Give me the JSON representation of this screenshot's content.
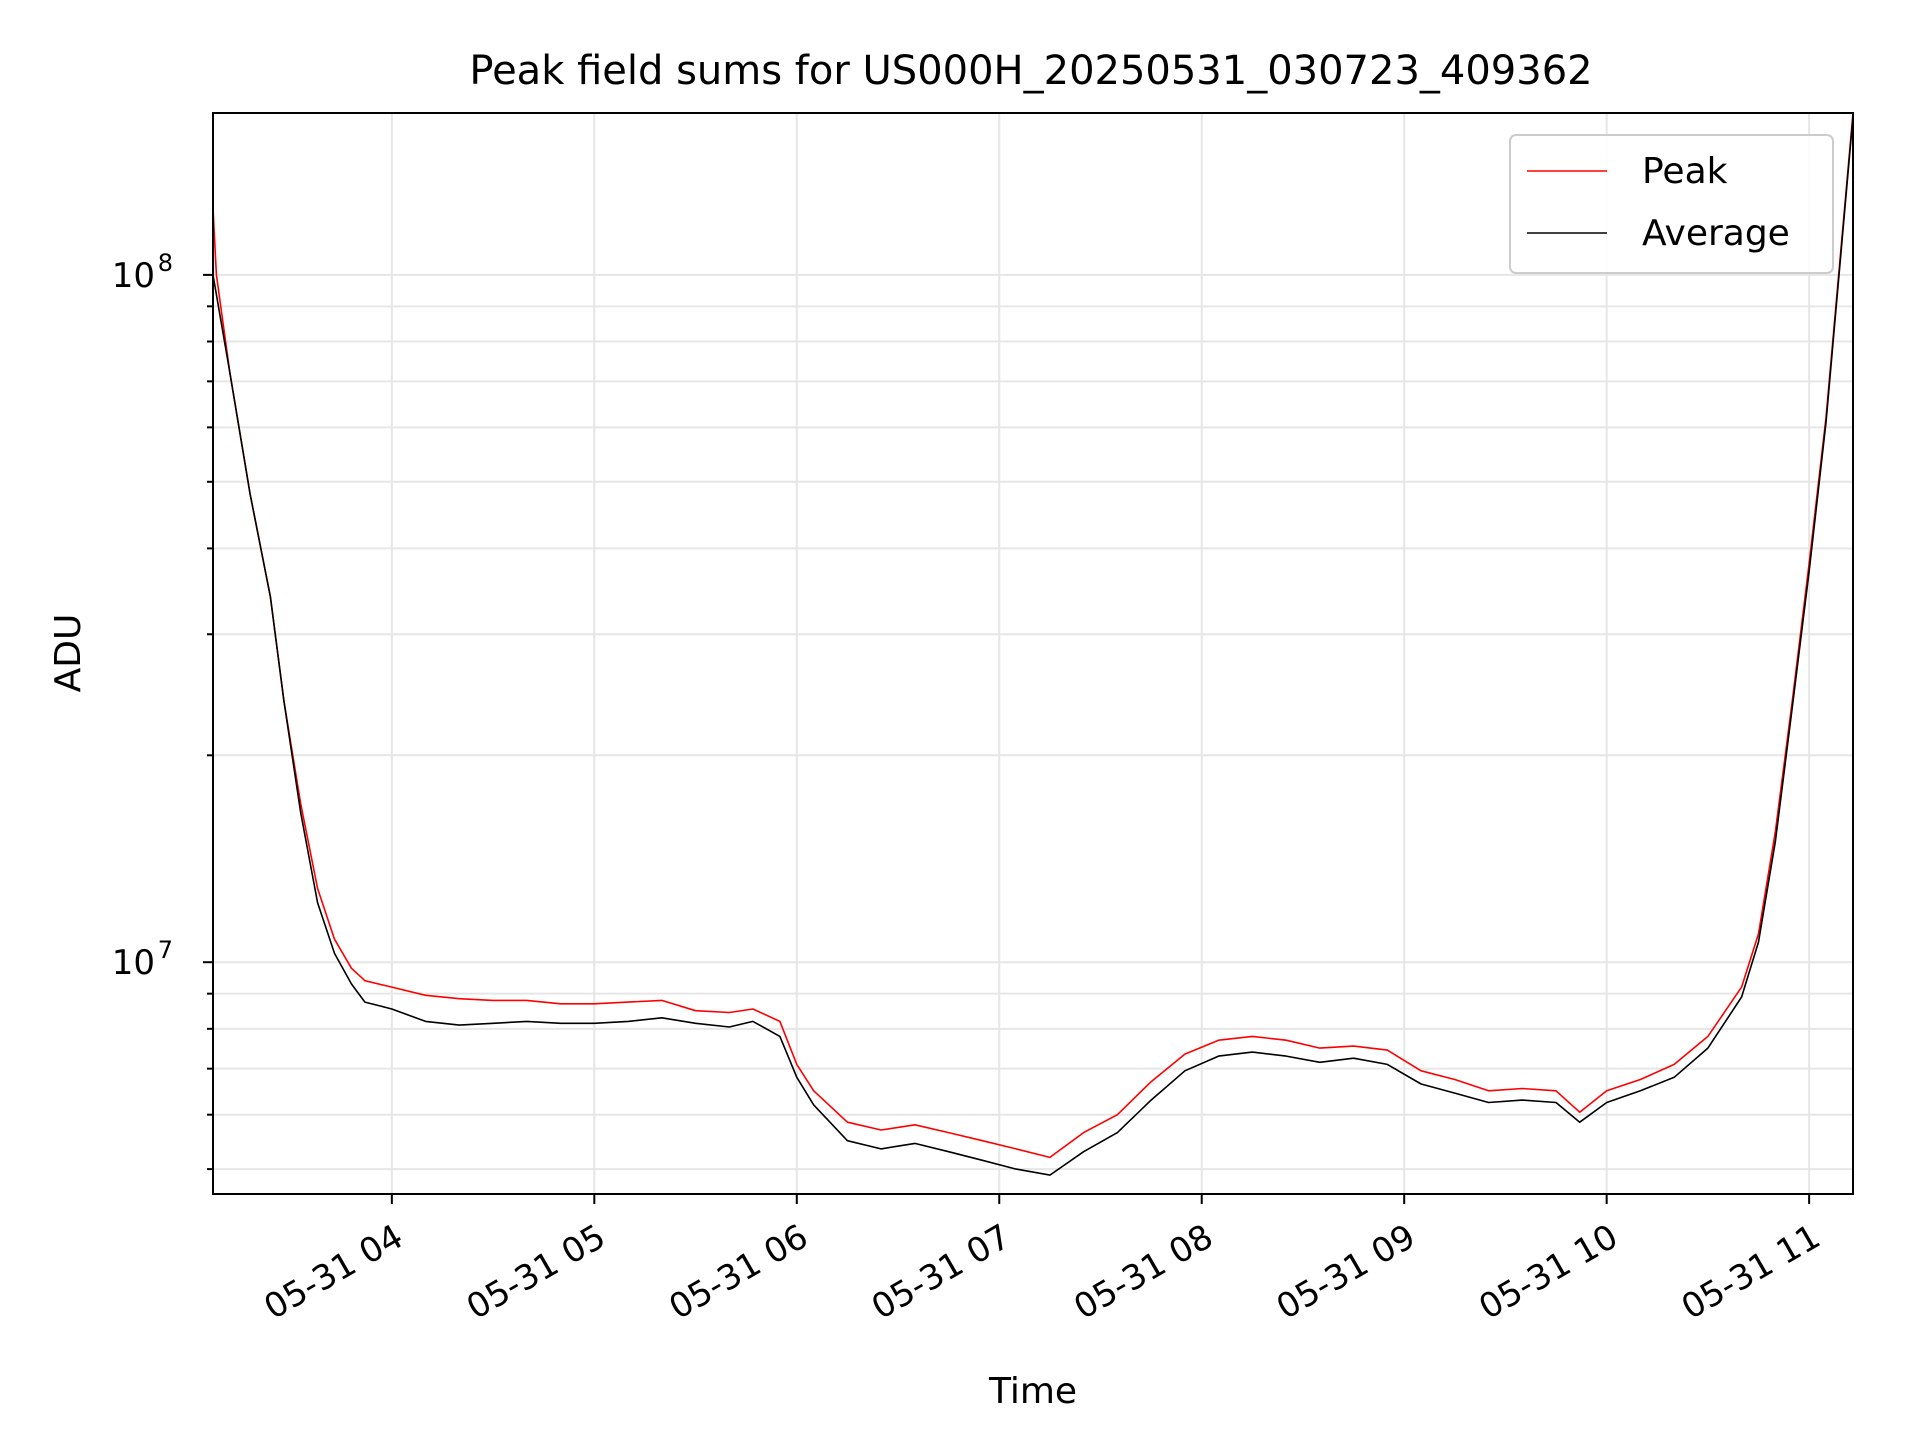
{
  "chart_data": {
    "type": "line",
    "title": "Peak field sums for US000H_20250531_030723_409362",
    "xlabel": "Time",
    "ylabel": "ADU",
    "y_scale": "log",
    "xlim": [
      "05-31 03:07",
      "05-31 11:13"
    ],
    "ylim": [
      4600000,
      172000000
    ],
    "x_ticks": [
      "05-31 04",
      "05-31 05",
      "05-31 06",
      "05-31 07",
      "05-31 08",
      "05-31 09",
      "05-31 10",
      "05-31 11"
    ],
    "y_ticks": [
      {
        "value": 100000000,
        "base": "10",
        "exp": "8"
      },
      {
        "value": 10000000,
        "base": "10",
        "exp": "7"
      }
    ],
    "grid": true,
    "legend_position": "top-right",
    "colors": {
      "peak": "#ff0000",
      "average": "#000000"
    },
    "series": [
      {
        "name": "Peak",
        "color": "#ff0000",
        "points": [
          [
            "05-31 03:07",
            125000000
          ],
          [
            "05-31 03:08",
            100000000
          ],
          [
            "05-31 03:12",
            72000000
          ],
          [
            "05-31 03:18",
            48000000
          ],
          [
            "05-31 03:24",
            34000000
          ],
          [
            "05-31 03:28",
            24000000
          ],
          [
            "05-31 03:33",
            17000000
          ],
          [
            "05-31 03:38",
            12800000
          ],
          [
            "05-31 03:43",
            10800000
          ],
          [
            "05-31 03:48",
            9800000
          ],
          [
            "05-31 03:52",
            9400000
          ],
          [
            "05-31 04:00",
            9200000
          ],
          [
            "05-31 04:10",
            8950000
          ],
          [
            "05-31 04:20",
            8850000
          ],
          [
            "05-31 04:30",
            8800000
          ],
          [
            "05-31 04:40",
            8800000
          ],
          [
            "05-31 04:50",
            8700000
          ],
          [
            "05-31 05:00",
            8700000
          ],
          [
            "05-31 05:10",
            8750000
          ],
          [
            "05-31 05:20",
            8800000
          ],
          [
            "05-31 05:30",
            8500000
          ],
          [
            "05-31 05:40",
            8450000
          ],
          [
            "05-31 05:47",
            8550000
          ],
          [
            "05-31 05:55",
            8200000
          ],
          [
            "05-31 06:00",
            7100000
          ],
          [
            "05-31 06:05",
            6500000
          ],
          [
            "05-31 06:15",
            5850000
          ],
          [
            "05-31 06:25",
            5700000
          ],
          [
            "05-31 06:35",
            5800000
          ],
          [
            "05-31 06:45",
            5650000
          ],
          [
            "05-31 06:55",
            5500000
          ],
          [
            "05-31 07:05",
            5350000
          ],
          [
            "05-31 07:15",
            5200000
          ],
          [
            "05-31 07:25",
            5650000
          ],
          [
            "05-31 07:35",
            6000000
          ],
          [
            "05-31 07:45",
            6700000
          ],
          [
            "05-31 07:55",
            7350000
          ],
          [
            "05-31 08:05",
            7700000
          ],
          [
            "05-31 08:15",
            7800000
          ],
          [
            "05-31 08:25",
            7700000
          ],
          [
            "05-31 08:35",
            7500000
          ],
          [
            "05-31 08:45",
            7550000
          ],
          [
            "05-31 08:55",
            7450000
          ],
          [
            "05-31 09:05",
            6950000
          ],
          [
            "05-31 09:15",
            6750000
          ],
          [
            "05-31 09:25",
            6500000
          ],
          [
            "05-31 09:35",
            6550000
          ],
          [
            "05-31 09:45",
            6500000
          ],
          [
            "05-31 09:52",
            6050000
          ],
          [
            "05-31 10:00",
            6500000
          ],
          [
            "05-31 10:10",
            6750000
          ],
          [
            "05-31 10:20",
            7100000
          ],
          [
            "05-31 10:30",
            7800000
          ],
          [
            "05-31 10:40",
            9200000
          ],
          [
            "05-31 10:45",
            11000000
          ],
          [
            "05-31 10:50",
            15500000
          ],
          [
            "05-31 10:55",
            24000000
          ],
          [
            "05-31 11:00",
            38000000
          ],
          [
            "05-31 11:05",
            62000000
          ],
          [
            "05-31 11:13",
            172000000
          ]
        ]
      },
      {
        "name": "Average",
        "color": "#000000",
        "points": [
          [
            "05-31 03:07",
            100000000
          ],
          [
            "05-31 03:12",
            72000000
          ],
          [
            "05-31 03:18",
            48000000
          ],
          [
            "05-31 03:24",
            34000000
          ],
          [
            "05-31 03:28",
            24000000
          ],
          [
            "05-31 03:33",
            16500000
          ],
          [
            "05-31 03:38",
            12200000
          ],
          [
            "05-31 03:43",
            10300000
          ],
          [
            "05-31 03:48",
            9300000
          ],
          [
            "05-31 03:52",
            8750000
          ],
          [
            "05-31 04:00",
            8550000
          ],
          [
            "05-31 04:10",
            8200000
          ],
          [
            "05-31 04:20",
            8100000
          ],
          [
            "05-31 04:30",
            8150000
          ],
          [
            "05-31 04:40",
            8200000
          ],
          [
            "05-31 04:50",
            8150000
          ],
          [
            "05-31 05:00",
            8150000
          ],
          [
            "05-31 05:10",
            8200000
          ],
          [
            "05-31 05:20",
            8300000
          ],
          [
            "05-31 05:30",
            8150000
          ],
          [
            "05-31 05:40",
            8050000
          ],
          [
            "05-31 05:47",
            8200000
          ],
          [
            "05-31 05:55",
            7800000
          ],
          [
            "05-31 06:00",
            6800000
          ],
          [
            "05-31 06:05",
            6200000
          ],
          [
            "05-31 06:15",
            5500000
          ],
          [
            "05-31 06:25",
            5350000
          ],
          [
            "05-31 06:35",
            5450000
          ],
          [
            "05-31 06:45",
            5300000
          ],
          [
            "05-31 06:55",
            5150000
          ],
          [
            "05-31 07:05",
            5000000
          ],
          [
            "05-31 07:15",
            4900000
          ],
          [
            "05-31 07:25",
            5300000
          ],
          [
            "05-31 07:35",
            5650000
          ],
          [
            "05-31 07:45",
            6300000
          ],
          [
            "05-31 07:55",
            6950000
          ],
          [
            "05-31 08:05",
            7300000
          ],
          [
            "05-31 08:15",
            7400000
          ],
          [
            "05-31 08:25",
            7300000
          ],
          [
            "05-31 08:35",
            7150000
          ],
          [
            "05-31 08:45",
            7250000
          ],
          [
            "05-31 08:55",
            7100000
          ],
          [
            "05-31 09:05",
            6650000
          ],
          [
            "05-31 09:15",
            6450000
          ],
          [
            "05-31 09:25",
            6250000
          ],
          [
            "05-31 09:35",
            6300000
          ],
          [
            "05-31 09:45",
            6250000
          ],
          [
            "05-31 09:52",
            5850000
          ],
          [
            "05-31 10:00",
            6250000
          ],
          [
            "05-31 10:10",
            6500000
          ],
          [
            "05-31 10:20",
            6800000
          ],
          [
            "05-31 10:30",
            7500000
          ],
          [
            "05-31 10:40",
            8900000
          ],
          [
            "05-31 10:45",
            10700000
          ],
          [
            "05-31 10:50",
            15000000
          ],
          [
            "05-31 10:55",
            23500000
          ],
          [
            "05-31 11:00",
            37000000
          ],
          [
            "05-31 11:05",
            61000000
          ],
          [
            "05-31 11:13",
            170000000
          ]
        ]
      }
    ]
  }
}
